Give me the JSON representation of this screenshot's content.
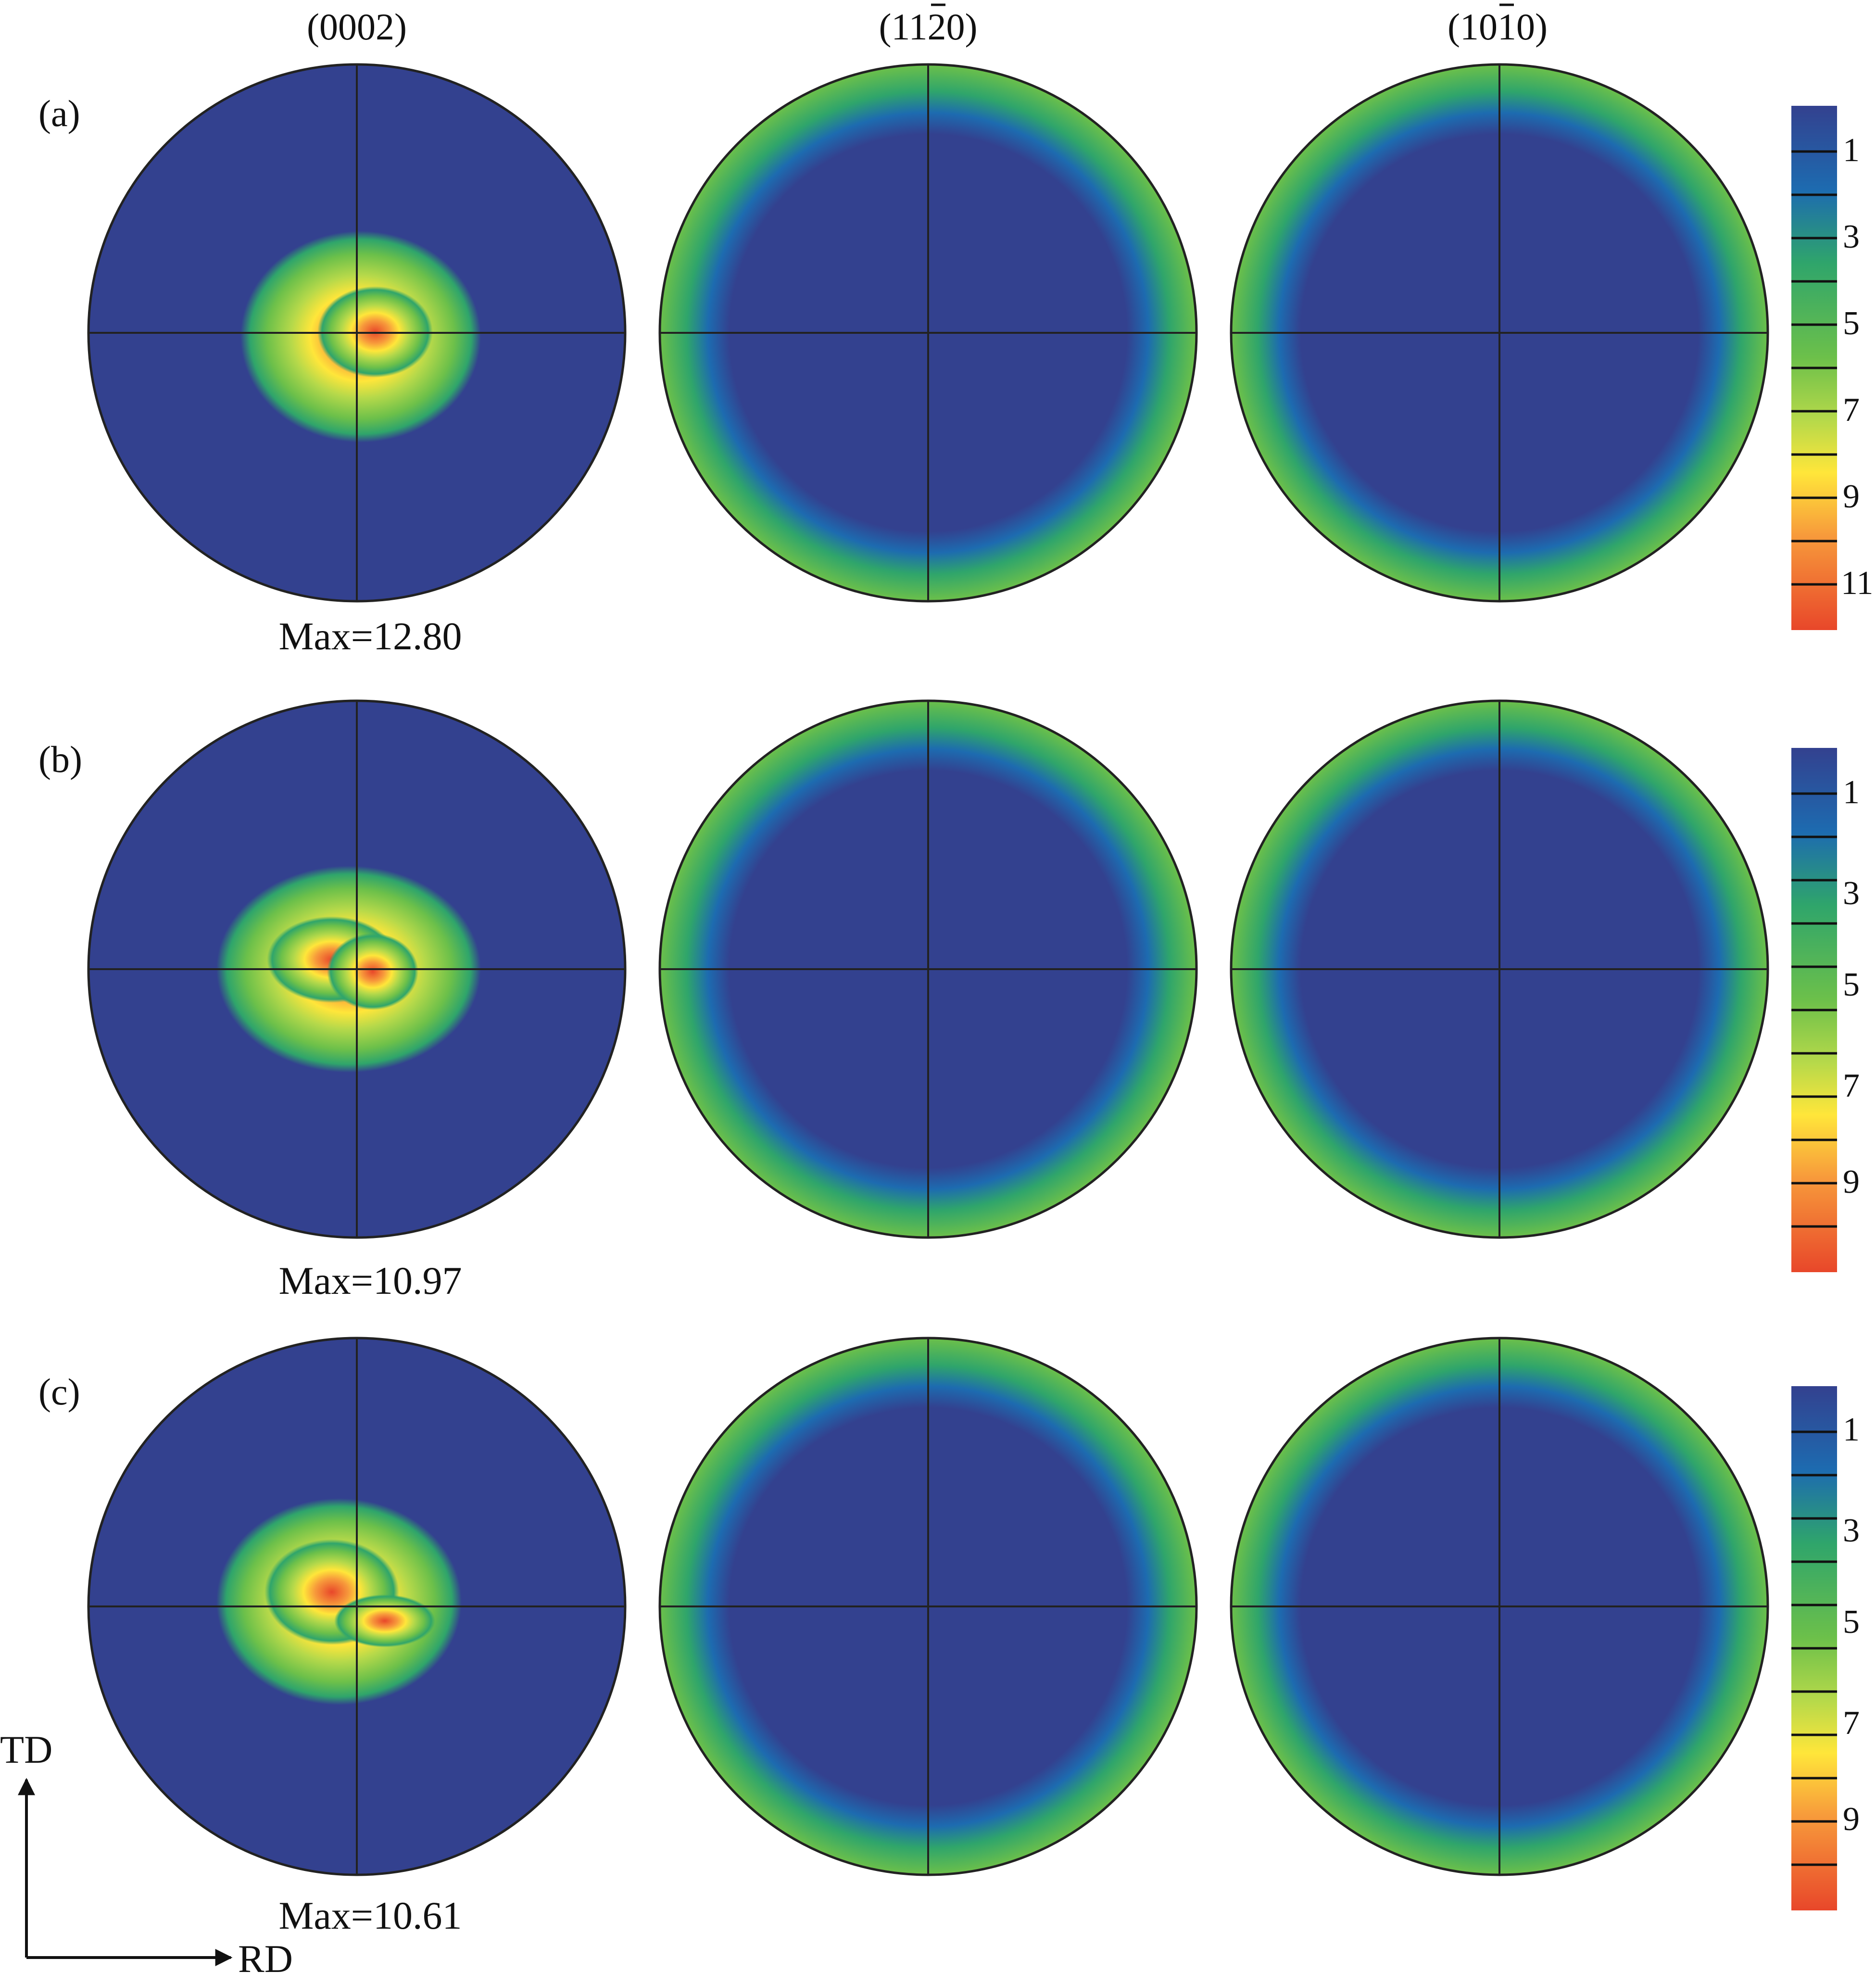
{
  "figure": {
    "column_headers": [
      {
        "pre": "(000",
        "bar": "",
        "post": "2)"
      },
      {
        "pre": "(11",
        "bar": "2",
        "post": "0)"
      },
      {
        "pre": "(10",
        "bar": "1",
        "post": "0)"
      }
    ],
    "rows": [
      {
        "label": "(a)",
        "max_text": "Max=12.80",
        "scale_ticks": [
          "1",
          "3",
          "5",
          "7",
          "9",
          "11"
        ]
      },
      {
        "label": "(b)",
        "max_text": "Max=10.97",
        "scale_ticks": [
          "1",
          "3",
          "5",
          "7",
          "9"
        ]
      },
      {
        "label": "(c)",
        "max_text": "Max=10.61",
        "scale_ticks": [
          "1",
          "3",
          "5",
          "7",
          "9"
        ]
      }
    ],
    "axes": {
      "vertical": "TD",
      "horizontal": "RD"
    },
    "colors": {
      "background": "#33418f",
      "low": "#1d6bb0",
      "mid": "#2fa56b",
      "green": "#6cc04a",
      "lime": "#b6d94a",
      "yellow": "#ffe63a",
      "orange": "#f79a3b",
      "red": "#e8472a"
    }
  }
}
